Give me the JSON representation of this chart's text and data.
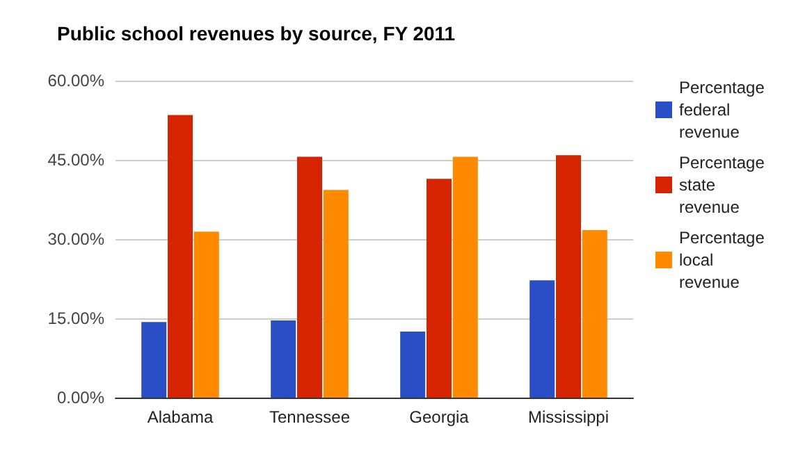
{
  "chart_data": {
    "type": "bar",
    "title": "Public school revenues by source, FY 2011",
    "categories": [
      "Alabama",
      "Tennessee",
      "Georgia",
      "Mississippi"
    ],
    "series": [
      {
        "name": "Percentage federal revenue",
        "color": "#2a4ec6",
        "values": [
          14.3,
          14.6,
          12.5,
          22.2
        ]
      },
      {
        "name": "Percentage state revenue",
        "color": "#d62400",
        "values": [
          53.5,
          45.6,
          41.4,
          45.9
        ]
      },
      {
        "name": "Percentage local revenue",
        "color": "#ff8a00",
        "values": [
          31.4,
          39.3,
          45.6,
          31.7
        ]
      }
    ],
    "ylim": [
      0,
      60
    ],
    "yticks": [
      {
        "value": 0,
        "label": "0.00%"
      },
      {
        "value": 15,
        "label": "15.00%"
      },
      {
        "value": 30,
        "label": "30.00%"
      },
      {
        "value": 45,
        "label": "45.00%"
      },
      {
        "value": 60,
        "label": "60.00%"
      }
    ],
    "grid": "y",
    "legend": "top right"
  }
}
